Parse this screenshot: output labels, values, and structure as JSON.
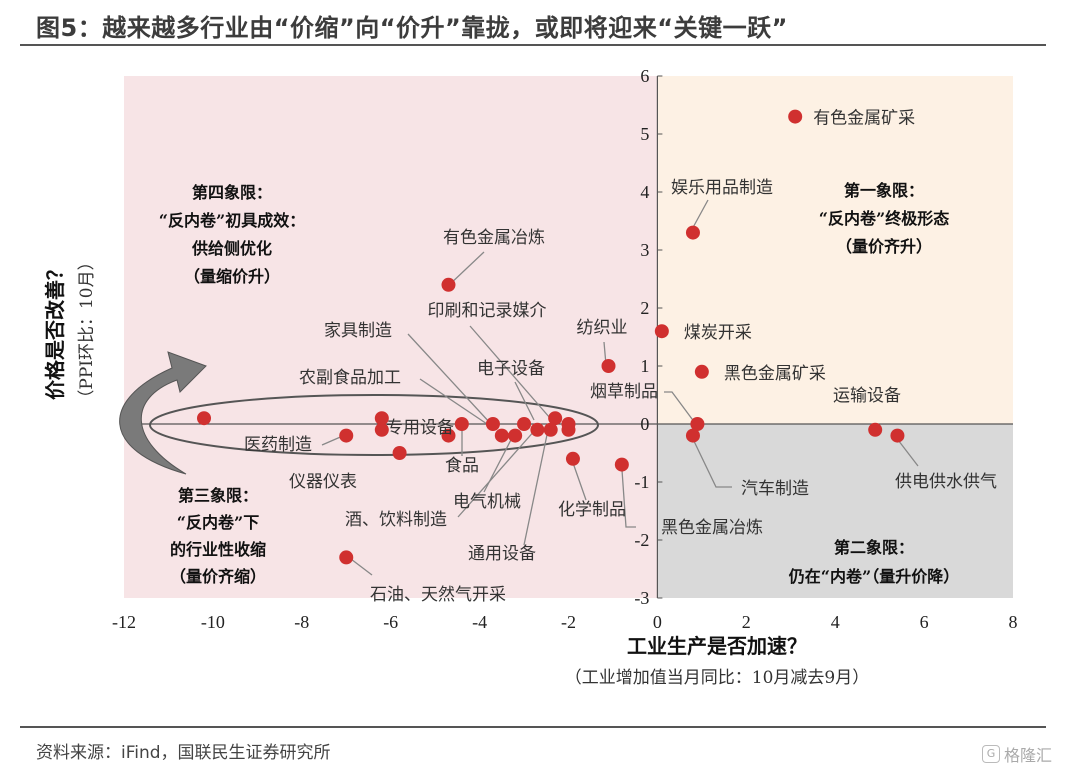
{
  "header": {
    "title": "图5：越来越多行业由“价缩”向“价升”靠拢，或即将迎来“关键一跃”"
  },
  "footer": {
    "source": "资料来源：iFind，国联民生证券研究所",
    "watermark_text": "格隆汇",
    "watermark_icon": "G"
  },
  "chart_data": {
    "type": "scatter",
    "xlabel": "工业生产是否加速？",
    "xlabel_sub": "（工业增加值当月同比：10月减去9月）",
    "ylabel": "价格是否改善？",
    "ylabel_sub": "（PPI环比：10月）",
    "xlim": [
      -12,
      8
    ],
    "ylim": [
      -3,
      6
    ],
    "xticks": [
      -12,
      -10,
      -8,
      -6,
      -4,
      -2,
      0,
      2,
      4,
      6,
      8
    ],
    "yticks": [
      -3,
      -2,
      -1,
      0,
      1,
      2,
      3,
      4,
      5,
      6
    ],
    "colors": {
      "point": "#d0302f",
      "q1": "#fdf1e4",
      "q2": "#d9d9d9",
      "q3": "#f7e4e6",
      "q4": "#f7e4e6",
      "axis": "#555555",
      "leader": "#888888",
      "arrow": "#777777"
    },
    "quadrants": {
      "q1": [
        "第一象限：",
        "“反内卷”终极形态",
        "（量价齐升）"
      ],
      "q2": [
        "第二象限：",
        "仍在“内卷”（量升价降）"
      ],
      "q3": [
        "第三象限：",
        "“反内卷”下",
        "的行业性收缩",
        "（量价齐缩）"
      ],
      "q4": [
        "第四象限：",
        "“反内卷”初具成效：",
        "供给侧优化",
        "（量缩价升）"
      ]
    },
    "points": [
      {
        "name": "有色金属矿采",
        "x": 3.1,
        "y": 5.3
      },
      {
        "name": "娱乐用品制造",
        "x": 0.8,
        "y": 3.3
      },
      {
        "name": "煤炭开采",
        "x": 0.1,
        "y": 1.6
      },
      {
        "name": "黑色金属矿采",
        "x": 1.0,
        "y": 0.9
      },
      {
        "name": "运输设备",
        "x": 4.9,
        "y": -0.1
      },
      {
        "name": "供电供水供气",
        "x": 5.4,
        "y": -0.2
      },
      {
        "name": "汽车制造",
        "x": 0.8,
        "y": -0.2
      },
      {
        "name": "烟草制品",
        "x": 0.9,
        "y": 0.0
      },
      {
        "name": "黑色金属冶炼",
        "x": -0.8,
        "y": -0.7
      },
      {
        "name": "纺织业",
        "x": -1.1,
        "y": 1.0
      },
      {
        "name": "有色金属冶炼",
        "x": -4.7,
        "y": 2.4
      },
      {
        "name": "印刷和记录媒介",
        "x": -2.3,
        "y": 0.1
      },
      {
        "name": "家具制造",
        "x": -3.7,
        "y": 0.0
      },
      {
        "name": "电子设备",
        "x": -2.0,
        "y": 0.0
      },
      {
        "name": "农副食品加工",
        "x": -3.5,
        "y": -0.2
      },
      {
        "name": "专用设备",
        "x": -4.4,
        "y": 0.0
      },
      {
        "name": "食品",
        "x": -4.7,
        "y": -0.2
      },
      {
        "name": "化学制品",
        "x": -1.9,
        "y": -0.6
      },
      {
        "name": "电气机械",
        "x": -3.2,
        "y": -0.2
      },
      {
        "name": "通用设备",
        "x": -2.4,
        "y": -0.1
      },
      {
        "name": "酒、饮料制造",
        "x": -2.7,
        "y": -0.1
      },
      {
        "name": "医药制造",
        "x": -7.0,
        "y": -0.2
      },
      {
        "name": "仪器仪表",
        "x": -5.8,
        "y": -0.5
      },
      {
        "name": "石油、天然气开采",
        "x": -7.0,
        "y": -2.3
      },
      {
        "name": "other-1",
        "x": -10.2,
        "y": 0.1
      },
      {
        "name": "other-2",
        "x": -6.2,
        "y": 0.1
      },
      {
        "name": "other-3",
        "x": -6.2,
        "y": -0.1
      },
      {
        "name": "other-4",
        "x": -3.0,
        "y": 0.0
      },
      {
        "name": "other-5",
        "x": -2.0,
        "y": -0.1
      }
    ]
  }
}
